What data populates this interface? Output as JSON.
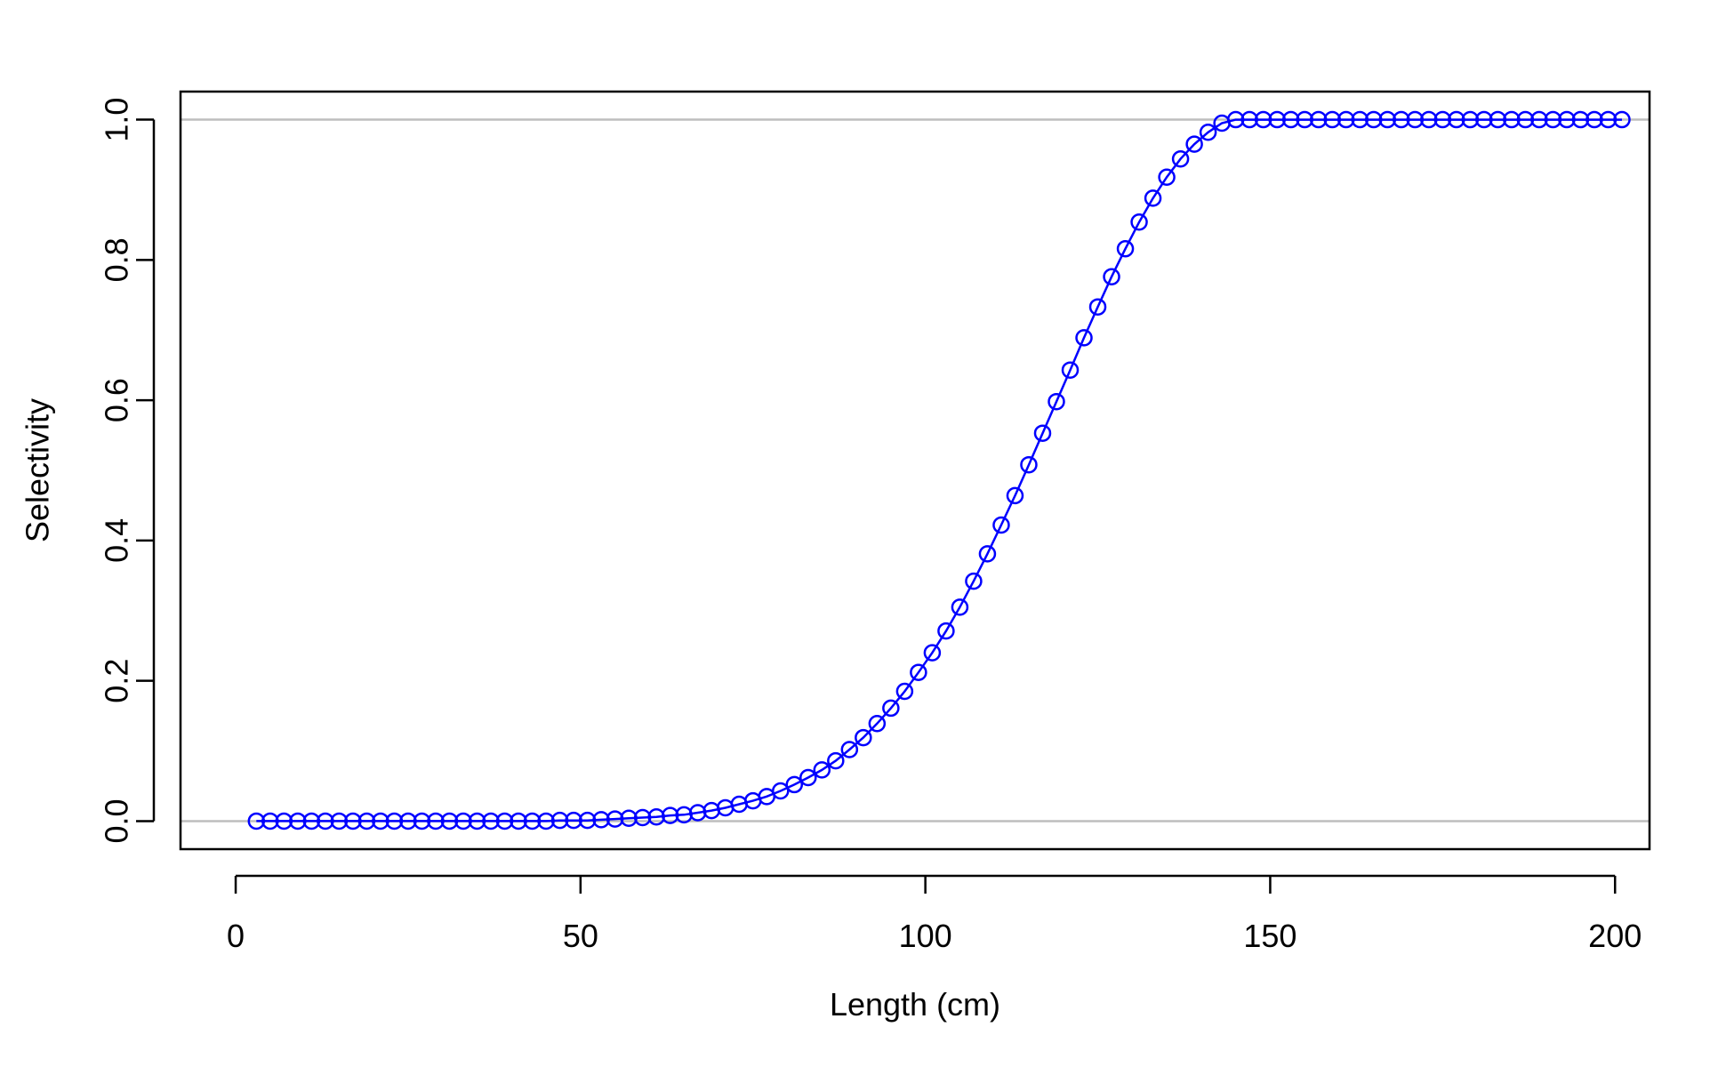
{
  "chart_data": {
    "type": "line",
    "title": "",
    "xlabel": "Length (cm)",
    "ylabel": "Selectivity",
    "xlim": [
      -8,
      205
    ],
    "ylim": [
      -0.04,
      1.04
    ],
    "x_ticks": [
      0,
      50,
      100,
      150,
      200
    ],
    "x_tick_labels": [
      "0",
      "50",
      "100",
      "150",
      "200"
    ],
    "y_ticks": [
      0.0,
      0.2,
      0.4,
      0.6,
      0.8,
      1.0
    ],
    "y_tick_labels": [
      "0.0",
      "0.2",
      "0.4",
      "0.6",
      "0.8",
      "1.0"
    ],
    "reference_lines_y": [
      0,
      1
    ],
    "reference_line_color": "#bebebe",
    "grid": false,
    "marker": "open-circle",
    "series": [
      {
        "color": "#0000ff",
        "x": [
          3,
          5,
          7,
          9,
          11,
          13,
          15,
          17,
          19,
          21,
          23,
          25,
          27,
          29,
          31,
          33,
          35,
          37,
          39,
          41,
          43,
          45,
          47,
          49,
          51,
          53,
          55,
          57,
          59,
          61,
          63,
          65,
          67,
          69,
          71,
          73,
          75,
          77,
          79,
          81,
          83,
          85,
          87,
          89,
          91,
          93,
          95,
          97,
          99,
          101,
          103,
          105,
          107,
          109,
          111,
          113,
          115,
          117,
          119,
          121,
          123,
          125,
          127,
          129,
          131,
          133,
          135,
          137,
          139,
          141,
          143,
          145,
          147,
          149,
          151,
          153,
          155,
          157,
          159,
          161,
          163,
          165,
          167,
          169,
          171,
          173,
          175,
          177,
          179,
          181,
          183,
          185,
          187,
          189,
          191,
          193,
          195,
          197,
          199,
          201
        ],
        "y": [
          0.0,
          0.0,
          0.0,
          0.0,
          0.0,
          0.0,
          0.0,
          0.0,
          0.0,
          0.0,
          0.0,
          0.0,
          0.0,
          0.0,
          0.0,
          0.0,
          0.0,
          0.0,
          0.0,
          0.0,
          0.0,
          0.0,
          0.001,
          0.001,
          0.001,
          0.002,
          0.003,
          0.004,
          0.005,
          0.006,
          0.008,
          0.009,
          0.012,
          0.015,
          0.019,
          0.024,
          0.029,
          0.035,
          0.043,
          0.052,
          0.062,
          0.073,
          0.086,
          0.102,
          0.119,
          0.139,
          0.161,
          0.185,
          0.212,
          0.24,
          0.271,
          0.305,
          0.342,
          0.381,
          0.422,
          0.464,
          0.508,
          0.553,
          0.598,
          0.643,
          0.689,
          0.733,
          0.776,
          0.816,
          0.854,
          0.888,
          0.918,
          0.944,
          0.965,
          0.982,
          0.995,
          1.0,
          1.0,
          1.0,
          1.0,
          1.0,
          1.0,
          1.0,
          1.0,
          1.0,
          1.0,
          1.0,
          1.0,
          1.0,
          1.0,
          1.0,
          1.0,
          1.0,
          1.0,
          1.0,
          1.0,
          1.0,
          1.0,
          1.0,
          1.0,
          1.0,
          1.0,
          1.0,
          1.0,
          1.0
        ]
      }
    ]
  }
}
